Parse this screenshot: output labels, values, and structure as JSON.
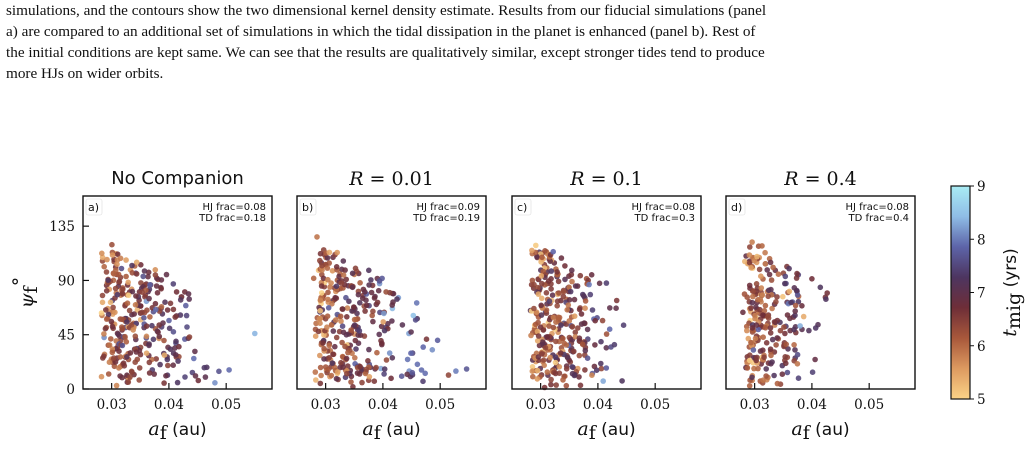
{
  "caption": {
    "lines": [
      "simulations, and the contours show the two dimensional kernel density estimate. Results from our fiducial simulations (panel",
      "a) are compared to an additional set of simulations in which the tidal dissipation in the planet is enhanced (panel b). Rest of",
      "the initial conditions are kept same. We can see that the results are qualitatively similar, except stronger tides tend to produce",
      "more HJs on wider orbits."
    ]
  },
  "chart_data": [
    {
      "type": "scatter",
      "panel_label": "a)",
      "title": "No Companion",
      "annotation": [
        "HJ frac=0.08",
        "TD frac=0.18"
      ],
      "xlabel": "a_f (au)",
      "ylabel": "ψ_f°",
      "xlim": [
        0.025,
        0.058
      ],
      "ylim": [
        0,
        160
      ],
      "xticks": [
        0.03,
        0.04,
        0.05
      ],
      "yticks": [
        0,
        45,
        90,
        135
      ],
      "color_by": "t_mig (log10 yrs)",
      "n_points": 330,
      "spread": 1.0,
      "seed": 11
    },
    {
      "type": "scatter",
      "panel_label": "b)",
      "title_prefix": "R",
      "title_value": "0.01",
      "annotation": [
        "HJ frac=0.09",
        "TD frac=0.19"
      ],
      "xlabel": "a_f (au)",
      "xlim": [
        0.025,
        0.058
      ],
      "ylim": [
        0,
        160
      ],
      "xticks": [
        0.03,
        0.04,
        0.05
      ],
      "color_by": "t_mig (log10 yrs)",
      "n_points": 330,
      "spread": 1.0,
      "seed": 23
    },
    {
      "type": "scatter",
      "panel_label": "c)",
      "title_prefix": "R",
      "title_value": "0.1",
      "annotation": [
        "HJ frac=0.08",
        "TD frac=0.3"
      ],
      "xlabel": "a_f (au)",
      "xlim": [
        0.025,
        0.058
      ],
      "ylim": [
        0,
        160
      ],
      "xticks": [
        0.03,
        0.04,
        0.05
      ],
      "color_by": "t_mig (log10 yrs)",
      "n_points": 330,
      "spread": 0.85,
      "seed": 37
    },
    {
      "type": "scatter",
      "panel_label": "d)",
      "title_prefix": "R",
      "title_value": "0.4",
      "annotation": [
        "HJ frac=0.08",
        "TD frac=0.4"
      ],
      "xlabel": "a_f (au)",
      "xlim": [
        0.025,
        0.058
      ],
      "ylim": [
        0,
        160
      ],
      "xticks": [
        0.03,
        0.04,
        0.05
      ],
      "color_by": "t_mig (log10 yrs)",
      "n_points": 250,
      "spread": 0.75,
      "seed": 53
    }
  ],
  "colorbar": {
    "label": "t_mig (yrs)",
    "range": [
      5,
      9
    ],
    "ticks": [
      5,
      6,
      7,
      8,
      9
    ],
    "colors": [
      "#fbd387",
      "#dd9a60",
      "#a8583b",
      "#6e2e38",
      "#4d3560",
      "#5d64a8",
      "#8fbde6",
      "#a9ecf4"
    ]
  }
}
